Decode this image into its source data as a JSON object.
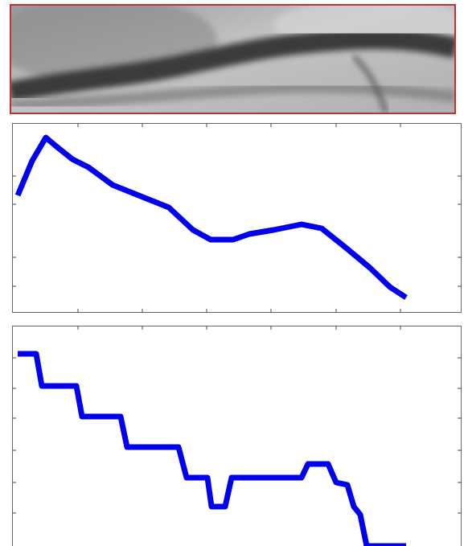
{
  "chart_data": [
    {
      "type": "line",
      "xlim": [
        0,
        559
      ],
      "ylim": [
        0,
        236
      ],
      "x": [
        7,
        25,
        42,
        55,
        75,
        95,
        125,
        145,
        170,
        195,
        225,
        247,
        275,
        295,
        325,
        360,
        385,
        415,
        445,
        470,
        490
      ],
      "series": [
        {
          "color": "#0000ee",
          "values": [
            146,
            189,
            218,
            207,
            191,
            181,
            159,
            151,
            141,
            131,
            103,
            91,
            91,
            98,
            103,
            110,
            105,
            81,
            56,
            32,
            19
          ]
        }
      ]
    },
    {
      "type": "line",
      "xlim": [
        0,
        559
      ],
      "ylim": [
        0,
        274
      ],
      "x": [
        7,
        30,
        37,
        80,
        87,
        135,
        143,
        207,
        217,
        243,
        248,
        265,
        273,
        360,
        368,
        393,
        403,
        417,
        425,
        433,
        441,
        490
      ],
      "series": [
        {
          "color": "#0000ee",
          "values": [
            239,
            239,
            199,
            199,
            161,
            161,
            123,
            123,
            85,
            85,
            49,
            49,
            85,
            85,
            102,
            102,
            79,
            76,
            49,
            39,
            0,
            0
          ]
        }
      ]
    }
  ]
}
